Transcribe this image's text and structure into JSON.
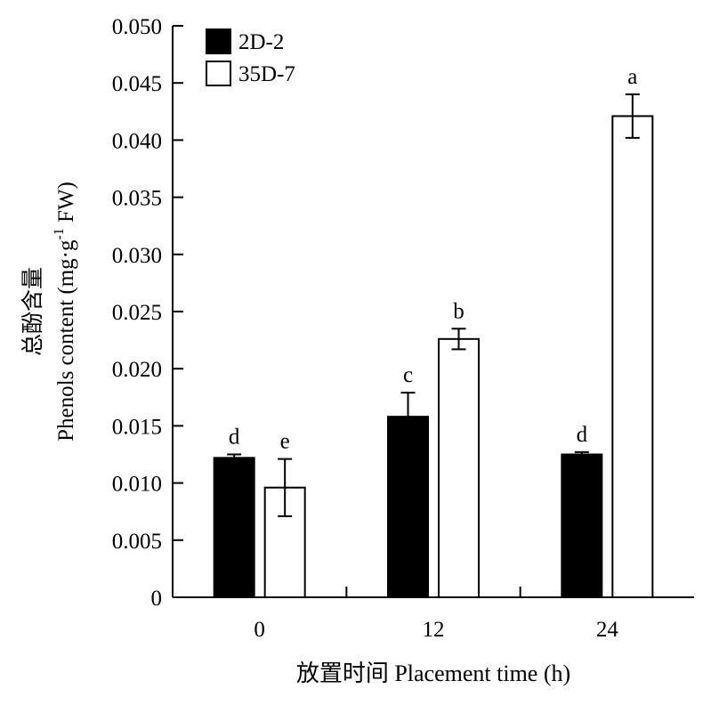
{
  "chart_data": {
    "type": "bar",
    "categories": [
      "0",
      "12",
      "24"
    ],
    "series": [
      {
        "name": "2D-2",
        "color": "#000000",
        "values": [
          0.0122,
          0.0158,
          0.0125
        ],
        "errors": [
          0.0003,
          0.0021,
          0.0002
        ],
        "letters": [
          "d",
          "c",
          "d"
        ]
      },
      {
        "name": "35D-7",
        "color": "#ffffff",
        "values": [
          0.0096,
          0.0226,
          0.0421
        ],
        "errors": [
          0.0025,
          0.0009,
          0.0019
        ],
        "letters": [
          "e",
          "b",
          "a"
        ]
      }
    ],
    "xlabel": "放置时间 Placement time (h)",
    "ylabel_cn": "总酚含量",
    "ylabel_main": "Phenols content (mg·g",
    "ylabel_sup": "-1",
    "ylabel_end": " FW)",
    "ylim": [
      0,
      0.05
    ],
    "yticks": [
      "0",
      "0.005",
      "0.010",
      "0.015",
      "0.020",
      "0.025",
      "0.030",
      "0.035",
      "0.040",
      "0.045",
      "0.050"
    ],
    "legend_position": "top-left",
    "grid": false
  }
}
